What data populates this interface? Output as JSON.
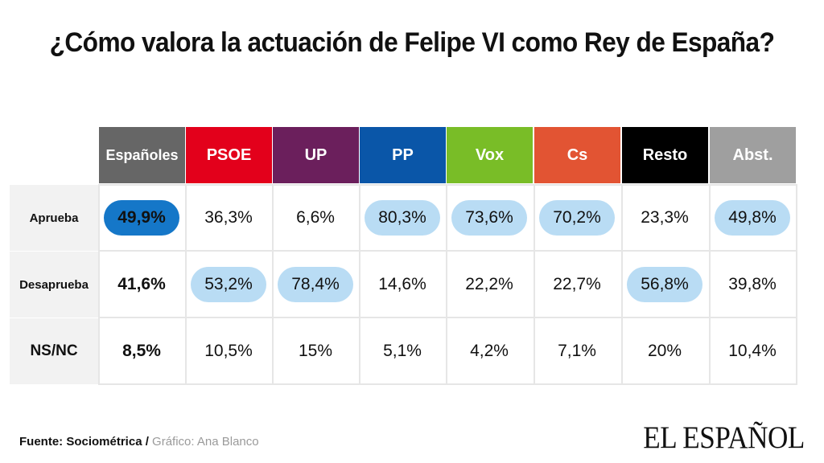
{
  "title": "¿Cómo valora la actuación de Felipe VI como Rey de España?",
  "footer": {
    "source": "Fuente: Sociométrica /",
    "credit": " Gráfico: Ana Blanco"
  },
  "logo": "EL ESPAÑOL",
  "chart_data": {
    "type": "table",
    "title": "¿Cómo valora la actuación de Felipe VI como Rey de España?",
    "columns": [
      {
        "label": "Españoles",
        "color": "#666666"
      },
      {
        "label": "PSOE",
        "color": "#e3001b"
      },
      {
        "label": "UP",
        "color": "#6b1f5c"
      },
      {
        "label": "PP",
        "color": "#0a56a8"
      },
      {
        "label": "Vox",
        "color": "#79bd27"
      },
      {
        "label": "Cs",
        "color": "#e25433"
      },
      {
        "label": "Resto",
        "color": "#000000"
      },
      {
        "label": "Abst.",
        "color": "#9f9f9f"
      }
    ],
    "rows": [
      {
        "label": "Aprueba",
        "values": [
          "49,9%",
          "36,3%",
          "6,6%",
          "80,3%",
          "73,6%",
          "70,2%",
          "23,3%",
          "49,8%"
        ],
        "highlight": [
          "dark",
          "",
          "",
          "light",
          "light",
          "light",
          "",
          "light"
        ]
      },
      {
        "label": "Desaprueba",
        "values": [
          "41,6%",
          "53,2%",
          "78,4%",
          "14,6%",
          "22,2%",
          "22,7%",
          "56,8%",
          "39,8%"
        ],
        "highlight": [
          "",
          "light",
          "light",
          "",
          "",
          "",
          "light",
          ""
        ]
      },
      {
        "label": "NS/NC",
        "values": [
          "8,5%",
          "10,5%",
          "15%",
          "5,1%",
          "4,2%",
          "7,1%",
          "20%",
          "10,4%"
        ],
        "highlight": [
          "",
          "",
          "",
          "",
          "",
          "",
          "",
          ""
        ]
      }
    ],
    "highlight_colors": {
      "dark": "#1577c8",
      "light": "#b9dcf4"
    }
  }
}
